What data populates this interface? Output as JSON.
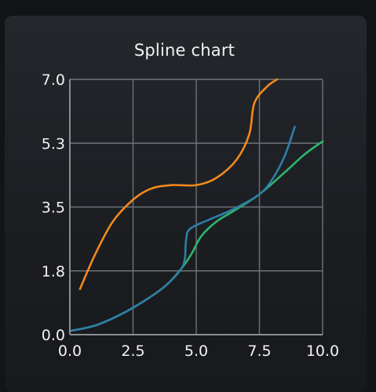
{
  "chart_data": {
    "type": "line",
    "title": "Spline chart",
    "xlabel": "",
    "ylabel": "",
    "xlim": [
      0,
      10
    ],
    "ylim": [
      0,
      7
    ],
    "x_ticks": [
      "0.0",
      "2.5",
      "5.0",
      "7.5",
      "10.0"
    ],
    "y_ticks": [
      "0.0",
      "1.8",
      "3.5",
      "5.3",
      "7.0"
    ],
    "grid": true,
    "legend": "none",
    "series": [
      {
        "color": "#f2891c",
        "points": [
          [
            0.4,
            1.25
          ],
          [
            1.0,
            2.2
          ],
          [
            1.7,
            3.1
          ],
          [
            2.5,
            3.7
          ],
          [
            3.2,
            4.0
          ],
          [
            4.0,
            4.1
          ],
          [
            5.0,
            4.1
          ],
          [
            5.8,
            4.3
          ],
          [
            6.6,
            4.8
          ],
          [
            7.1,
            5.5
          ],
          [
            7.3,
            6.35
          ],
          [
            7.8,
            6.8
          ],
          [
            8.2,
            7.0
          ]
        ]
      },
      {
        "color": "#2f7fa6",
        "points": [
          [
            0.0,
            0.1
          ],
          [
            1.0,
            0.25
          ],
          [
            2.0,
            0.55
          ],
          [
            3.0,
            0.95
          ],
          [
            3.8,
            1.35
          ],
          [
            4.4,
            1.8
          ],
          [
            4.55,
            2.1
          ],
          [
            4.6,
            2.6
          ],
          [
            4.75,
            2.9
          ],
          [
            5.5,
            3.15
          ],
          [
            6.5,
            3.45
          ],
          [
            7.5,
            3.85
          ],
          [
            8.0,
            4.25
          ],
          [
            8.5,
            4.9
          ],
          [
            8.9,
            5.7
          ]
        ]
      },
      {
        "color": "#2fb36e",
        "points": [
          [
            0.0,
            0.1
          ],
          [
            1.0,
            0.25
          ],
          [
            2.0,
            0.55
          ],
          [
            3.0,
            0.95
          ],
          [
            3.8,
            1.35
          ],
          [
            4.4,
            1.8
          ],
          [
            4.8,
            2.2
          ],
          [
            5.2,
            2.7
          ],
          [
            5.8,
            3.1
          ],
          [
            6.5,
            3.4
          ],
          [
            7.5,
            3.85
          ],
          [
            8.5,
            4.45
          ],
          [
            9.3,
            4.95
          ],
          [
            10.0,
            5.3
          ]
        ]
      }
    ],
    "colors": {
      "background": "#121417",
      "text": "#f2f2f2",
      "grid": "#6f7378",
      "axis": "#8a8e93"
    }
  }
}
